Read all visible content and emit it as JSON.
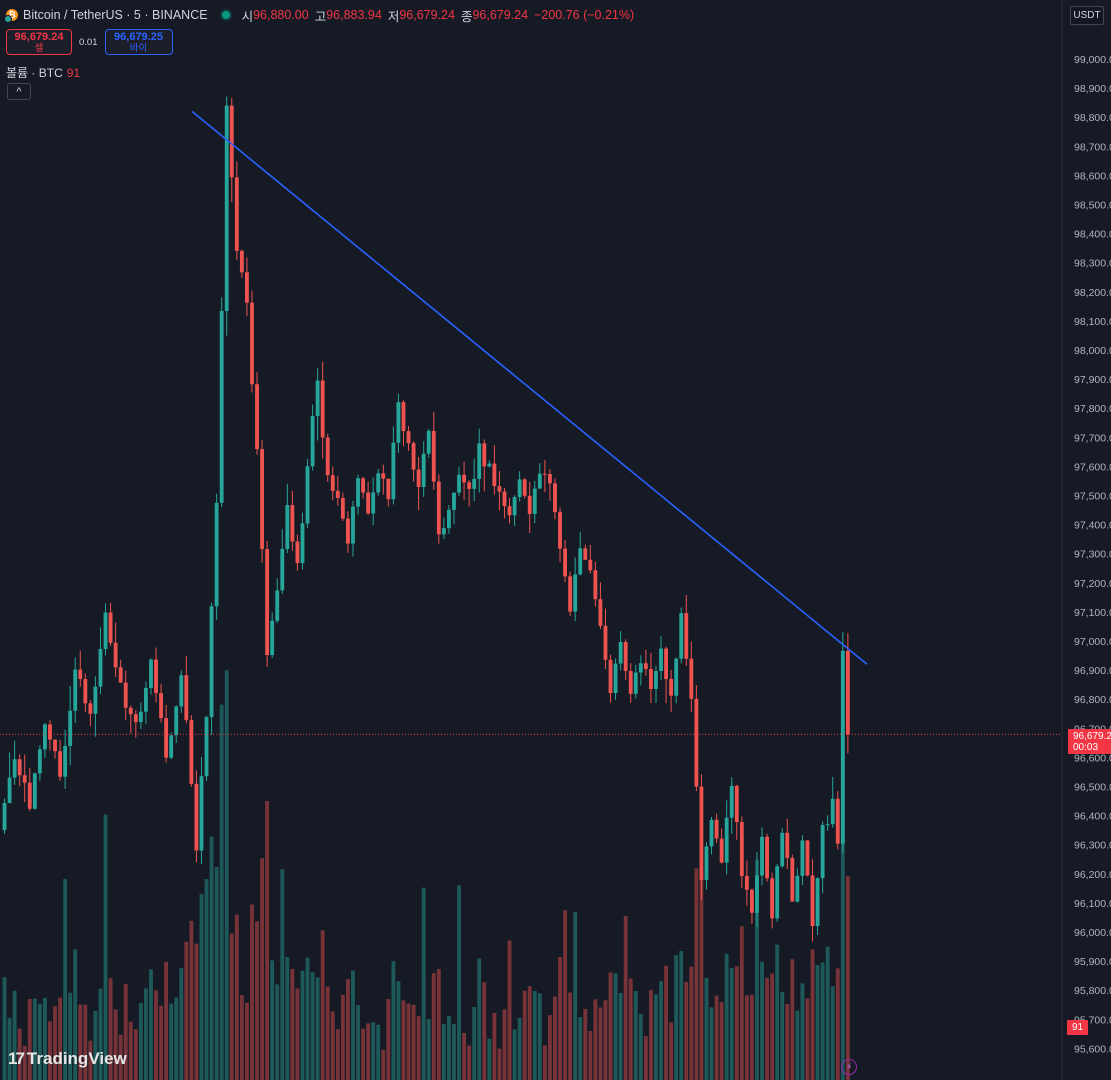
{
  "header": {
    "symbol": "Bitcoin / TetherUS · 5 · BINANCE",
    "open_label": "시",
    "open": "96,880.00",
    "high_label": "고",
    "high": "96,883.94",
    "low_label": "저",
    "low": "96,679.24",
    "close_label": "종",
    "close": "96,679.24",
    "change": "−200.76 (−0.21%)"
  },
  "trade": {
    "sell_price": "96,679.24",
    "sell_label": "셀",
    "spread": "0.01",
    "buy_price": "96,679.25",
    "buy_label": "바이"
  },
  "volume": {
    "label": "볼륨 · BTC",
    "value": "91"
  },
  "collapse": "^",
  "currency": "USDT",
  "price_tag": {
    "price": "96,679.2",
    "countdown": "00:03"
  },
  "volume_tag": "91",
  "logo": {
    "icon": "17",
    "text": "TradingView"
  },
  "bolt": "⚡",
  "colors": {
    "up": "#26a69a",
    "down": "#ef5350",
    "trendline": "#2962ff",
    "background": "#161a25"
  },
  "chart_data": {
    "type": "candlestick",
    "timeframe": "5",
    "currency": "USDT",
    "y_ticks": [
      "96,500.00",
      "96,600.00",
      "96,700.00",
      "96,800.00",
      "96,900.00",
      "97,000.00",
      "97,100.00",
      "97,200.00",
      "97,300.00",
      "97,400.00",
      "97,500.00",
      "97,600.00",
      "97,700.00",
      "97,800.00",
      "97,900.00",
      "98,000.00",
      "98,100.00",
      "98,200.00",
      "98,300.00",
      "98,400.00",
      "98,500.00",
      "98,600.00",
      "98,700.00",
      "98,800.00",
      "98,900.00",
      "99,000.00",
      "95,600.00",
      "95,700.00",
      "95,800.00",
      "95,900.00",
      "96,000.00",
      "96,100.00",
      "96,200.00",
      "96,300.00",
      "96,400.00"
    ],
    "ylim": [
      95580,
      99120
    ],
    "last_price": 96679.24,
    "trendline": {
      "start_price": 98820,
      "end_price": 96920
    },
    "price_path": [
      [
        0,
        96350
      ],
      [
        3,
        96600
      ],
      [
        6,
        96450
      ],
      [
        9,
        96700
      ],
      [
        12,
        96550
      ],
      [
        15,
        96900
      ],
      [
        18,
        96750
      ],
      [
        21,
        97100
      ],
      [
        24,
        96850
      ],
      [
        27,
        96700
      ],
      [
        30,
        96950
      ],
      [
        33,
        96600
      ],
      [
        36,
        96900
      ],
      [
        39,
        96300
      ],
      [
        41,
        96750
      ],
      [
        43,
        97450
      ],
      [
        45,
        98820
      ],
      [
        47,
        98350
      ],
      [
        49,
        98150
      ],
      [
        51,
        97650
      ],
      [
        53,
        96950
      ],
      [
        55,
        97150
      ],
      [
        57,
        97450
      ],
      [
        59,
        97250
      ],
      [
        61,
        97600
      ],
      [
        63,
        97900
      ],
      [
        65,
        97550
      ],
      [
        67,
        97500
      ],
      [
        69,
        97350
      ],
      [
        71,
        97550
      ],
      [
        73,
        97450
      ],
      [
        75,
        97600
      ],
      [
        77,
        97500
      ],
      [
        79,
        97850
      ],
      [
        81,
        97650
      ],
      [
        83,
        97550
      ],
      [
        85,
        97700
      ],
      [
        87,
        97350
      ],
      [
        89,
        97450
      ],
      [
        91,
        97600
      ],
      [
        93,
        97500
      ],
      [
        95,
        97650
      ],
      [
        97,
        97600
      ],
      [
        99,
        97500
      ],
      [
        101,
        97450
      ],
      [
        103,
        97550
      ],
      [
        105,
        97450
      ],
      [
        107,
        97600
      ],
      [
        109,
        97550
      ],
      [
        111,
        97300
      ],
      [
        113,
        97100
      ],
      [
        115,
        97300
      ],
      [
        117,
        97250
      ],
      [
        119,
        97050
      ],
      [
        121,
        96850
      ],
      [
        123,
        97000
      ],
      [
        125,
        96800
      ],
      [
        127,
        96950
      ],
      [
        129,
        96850
      ],
      [
        131,
        96950
      ],
      [
        133,
        96800
      ],
      [
        135,
        97100
      ],
      [
        137,
        96800
      ],
      [
        139,
        96150
      ],
      [
        141,
        96400
      ],
      [
        143,
        96250
      ],
      [
        145,
        96500
      ],
      [
        147,
        96200
      ],
      [
        149,
        96050
      ],
      [
        151,
        96300
      ],
      [
        153,
        96050
      ],
      [
        155,
        96350
      ],
      [
        157,
        96100
      ],
      [
        159,
        96300
      ],
      [
        161,
        96050
      ],
      [
        163,
        96350
      ],
      [
        165,
        96450
      ],
      [
        166,
        96300
      ],
      [
        167,
        96950
      ],
      [
        167.4,
        96679
      ]
    ],
    "volume_last": 91
  }
}
